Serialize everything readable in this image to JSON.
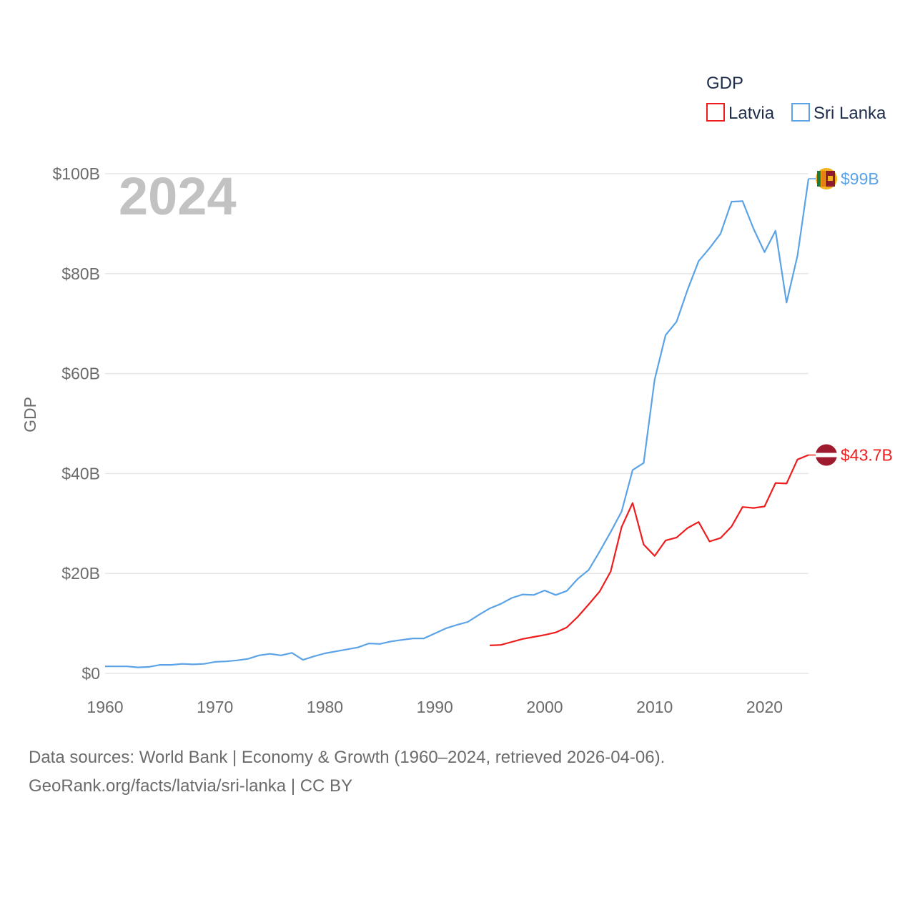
{
  "colors": {
    "latvia": "#ee1c1c",
    "sri_lanka": "#5ba3e6",
    "grid": "#e6e6e6",
    "latvia_flag": "#9e1a2e",
    "flag_white": "#ffffff"
  },
  "chart_data": {
    "type": "line",
    "title": "",
    "year_label": "2024",
    "xlabel": "",
    "ylabel": "GDP",
    "xlim": [
      1960,
      2024
    ],
    "ylim": [
      0,
      100
    ],
    "y_unit": "billion USD",
    "x_ticks": [
      1960,
      1970,
      1980,
      1990,
      2000,
      2010,
      2020
    ],
    "x_tick_labels": [
      "1960",
      "1970",
      "1980",
      "1990",
      "2000",
      "2010",
      "2020"
    ],
    "y_ticks": [
      0,
      20,
      40,
      60,
      80,
      100
    ],
    "y_tick_labels": [
      "$0",
      "$20B",
      "$40B",
      "$60B",
      "$80B",
      "$100B"
    ],
    "legend": {
      "title": "GDP",
      "placement": "top-right",
      "entries": [
        "Latvia",
        "Sri Lanka"
      ]
    },
    "series": [
      {
        "name": "Sri Lanka",
        "color_key": "sri_lanka",
        "end_label": "$99B",
        "flag_icon": "sri-lanka-flag-icon",
        "x": [
          1960,
          1961,
          1962,
          1963,
          1964,
          1965,
          1966,
          1967,
          1968,
          1969,
          1970,
          1971,
          1972,
          1973,
          1974,
          1975,
          1976,
          1977,
          1978,
          1979,
          1980,
          1981,
          1982,
          1983,
          1984,
          1985,
          1986,
          1987,
          1988,
          1989,
          1990,
          1991,
          1992,
          1993,
          1994,
          1995,
          1996,
          1997,
          1998,
          1999,
          2000,
          2001,
          2002,
          2003,
          2004,
          2005,
          2006,
          2007,
          2008,
          2009,
          2010,
          2011,
          2012,
          2013,
          2014,
          2015,
          2016,
          2017,
          2018,
          2019,
          2020,
          2021,
          2022,
          2023,
          2024
        ],
        "values": [
          1.4,
          1.4,
          1.4,
          1.2,
          1.3,
          1.7,
          1.7,
          1.9,
          1.8,
          1.9,
          2.3,
          2.4,
          2.6,
          2.9,
          3.6,
          3.9,
          3.6,
          4.1,
          2.7,
          3.4,
          4.0,
          4.4,
          4.8,
          5.2,
          6.0,
          5.9,
          6.4,
          6.7,
          7.0,
          7.0,
          8.0,
          9.0,
          9.7,
          10.3,
          11.7,
          13.0,
          13.9,
          15.1,
          15.8,
          15.7,
          16.6,
          15.7,
          16.5,
          18.9,
          20.7,
          24.4,
          28.3,
          32.4,
          40.7,
          42.1,
          58.8,
          67.7,
          70.4,
          76.8,
          82.5,
          85.1,
          88.0,
          94.4,
          94.5,
          89.0,
          84.3,
          88.6,
          74.2,
          83.6,
          99.0
        ]
      },
      {
        "name": "Latvia",
        "color_key": "latvia",
        "end_label": "$43.7B",
        "flag_icon": "latvia-flag-icon",
        "x": [
          1995,
          1996,
          1997,
          1998,
          1999,
          2000,
          2001,
          2002,
          2003,
          2004,
          2005,
          2006,
          2007,
          2008,
          2009,
          2010,
          2011,
          2012,
          2013,
          2014,
          2015,
          2016,
          2017,
          2018,
          2019,
          2020,
          2021,
          2022,
          2023,
          2024
        ],
        "values": [
          5.6,
          5.7,
          6.3,
          6.9,
          7.3,
          7.7,
          8.2,
          9.2,
          11.3,
          13.8,
          16.4,
          20.4,
          29.3,
          34.1,
          25.8,
          23.5,
          26.6,
          27.2,
          29.1,
          30.3,
          26.4,
          27.1,
          29.4,
          33.3,
          33.1,
          33.4,
          38.1,
          38.0,
          42.8,
          43.7
        ]
      }
    ]
  },
  "footer": {
    "line1": "Data sources: World Bank | Economy & Growth (1960–2024, retrieved 2026-04-06).",
    "line2": "GeoRank.org/facts/latvia/sri-lanka | CC BY"
  }
}
